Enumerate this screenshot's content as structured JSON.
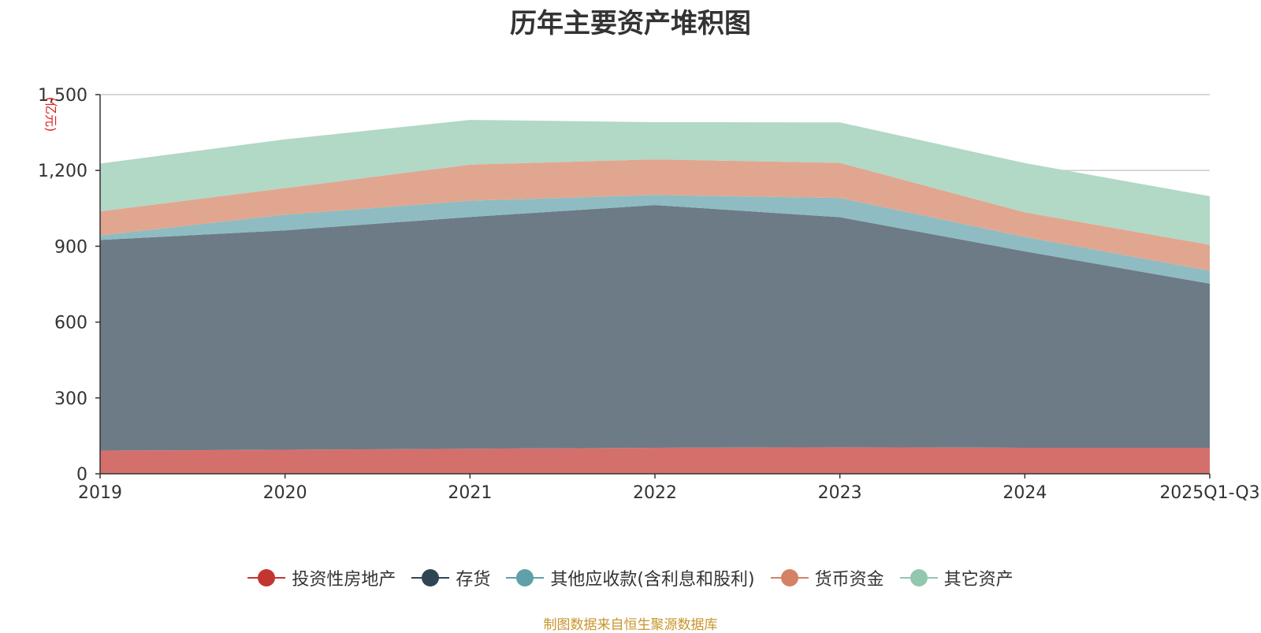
{
  "title": "历年主要资产堆积图",
  "source": "制图数据来自恒生聚源数据库",
  "chart_data": {
    "type": "area",
    "stacked": true,
    "title": "历年主要资产堆积图",
    "ylabel": "(亿元)",
    "xlabel": "",
    "categories": [
      "2019",
      "2020",
      "2021",
      "2022",
      "2023",
      "2024",
      "2025Q1-Q3"
    ],
    "ylim": [
      0,
      1500
    ],
    "yticks": [
      0,
      300,
      600,
      900,
      1200,
      1500
    ],
    "ytick_labels": [
      "0",
      "300",
      "600",
      "900",
      "1,200",
      "1,500"
    ],
    "grid": true,
    "legend_position": "bottom",
    "series": [
      {
        "name": "投资性房地产",
        "color": "#c23531",
        "fill": "#d4706c",
        "values": [
          92,
          95,
          99,
          103,
          105,
          103,
          103
        ]
      },
      {
        "name": "存货",
        "color": "#2f4554",
        "fill": "#6d7b86",
        "values": [
          833,
          868,
          917,
          960,
          910,
          777,
          649
        ]
      },
      {
        "name": "其他应收款(含利息和股利)",
        "color": "#61a0a8",
        "fill": "#8ebcc2",
        "values": [
          18,
          62,
          64,
          40,
          76,
          57,
          51
        ]
      },
      {
        "name": "货币资金",
        "color": "#d48265",
        "fill": "#e1a68f",
        "values": [
          95,
          105,
          143,
          141,
          139,
          97,
          103
        ]
      },
      {
        "name": "其它资产",
        "color": "#91c7ae",
        "fill": "#b2d8c6",
        "values": [
          189,
          193,
          177,
          147,
          160,
          195,
          192
        ]
      }
    ]
  }
}
